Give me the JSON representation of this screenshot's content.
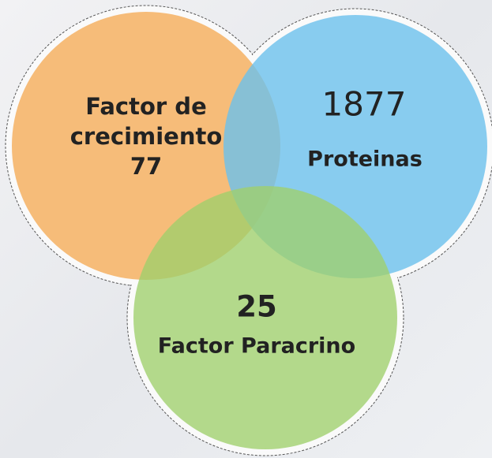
{
  "circles": [
    {
      "label_lines": [
        "Factor de",
        "crecimiento"
      ],
      "count": 77
    },
    {
      "count": 1877,
      "label": "Proteinas"
    },
    {
      "count": 25,
      "label": "Factor Paracrino"
    }
  ]
}
